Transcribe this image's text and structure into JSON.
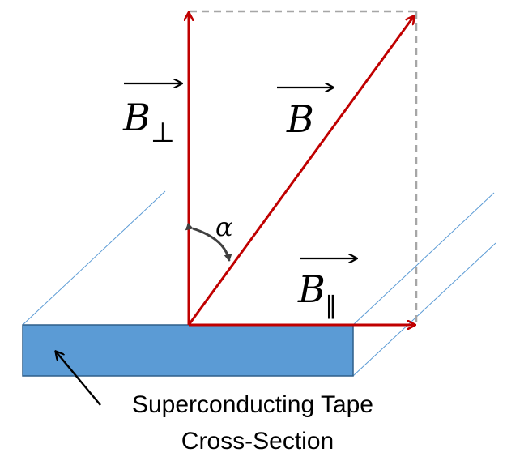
{
  "labels": {
    "b_total": {
      "symbol": "B"
    },
    "b_perp": {
      "symbol": "B",
      "subscript": "⊥"
    },
    "b_parallel": {
      "symbol": "B",
      "subscript": "∥"
    },
    "angle": "α"
  },
  "caption": {
    "line1": "Superconducting Tape",
    "line2": "Cross-Section"
  },
  "colors": {
    "vector": "#c00000",
    "tape_fill": "#5b9bd5",
    "tape_edge": "#2e5f8a",
    "guide_line": "#5b9bd5",
    "dashed_box": "#a6a6a6",
    "angle_arc": "#404040",
    "text": "#000000"
  }
}
